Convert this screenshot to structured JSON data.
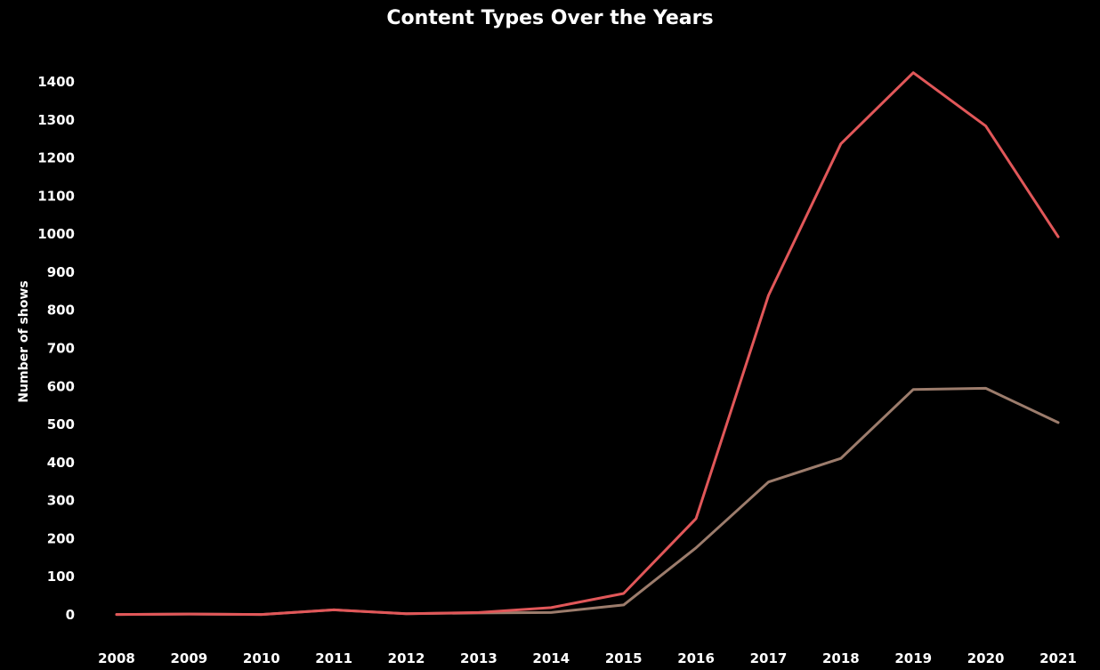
{
  "chart_data": {
    "type": "line",
    "title": "Content Types Over the Years",
    "xlabel": "",
    "ylabel": "Number of shows",
    "x": [
      "2008",
      "2009",
      "2010",
      "2011",
      "2012",
      "2013",
      "2014",
      "2015",
      "2016",
      "2017",
      "2018",
      "2019",
      "2020",
      "2021"
    ],
    "yticks": [
      0,
      100,
      200,
      300,
      400,
      500,
      600,
      700,
      800,
      900,
      1000,
      1100,
      1200,
      1300,
      1400
    ],
    "ylim": [
      0,
      1400
    ],
    "grid": false,
    "series": [
      {
        "color": "#e15759",
        "values": [
          1,
          2,
          1,
          13,
          3,
          6,
          19,
          56,
          253,
          839,
          1237,
          1424,
          1284,
          993
        ]
      },
      {
        "color": "#9c7c6c",
        "values": [
          1,
          2,
          1,
          13,
          3,
          5,
          6,
          26,
          176,
          349,
          411,
          592,
          595,
          505
        ]
      }
    ]
  }
}
